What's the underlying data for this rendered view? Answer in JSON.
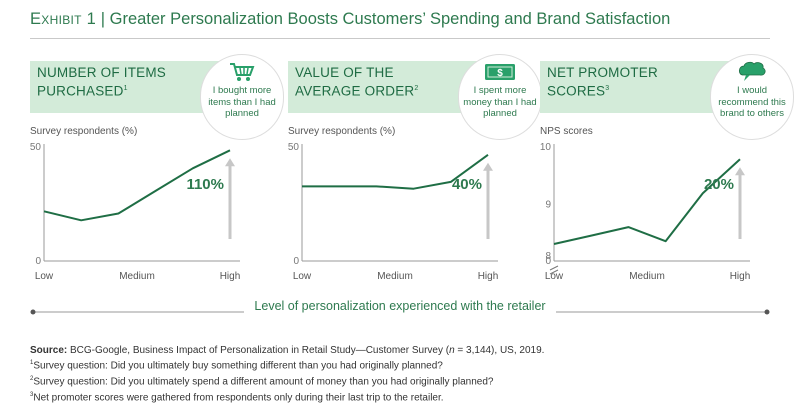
{
  "header": {
    "exhibit_label": "Exhibit 1",
    "separator": " | ",
    "title": "Greater Personalization Boosts Customers’ Spending and Brand Satisfaction"
  },
  "colors": {
    "accent": "#2e7a4f",
    "line": "#1f6e45",
    "banner_bg": "#d3ebd9",
    "axis": "#9a9a9a",
    "arrow": "#c7c7c7",
    "icon": "#29a06a"
  },
  "panels": [
    {
      "banner_title": "Number of items purchased",
      "footnote_mark": "1",
      "icon": "shopping-cart-icon",
      "bubble_text": "I bought more items than I had planned",
      "y_title": "Survey respondents (%)",
      "y_top_label": "50",
      "y_bottom_label": "0",
      "callout": "110%"
    },
    {
      "banner_title": "Value of the average order",
      "footnote_mark": "2",
      "icon": "dollar-bill-icon",
      "bubble_text": "I spent more money than I had planned",
      "y_title": "Survey respondents (%)",
      "y_top_label": "50",
      "y_bottom_label": "0",
      "callout": "40%"
    },
    {
      "banner_title": "Net promoter scores",
      "footnote_mark": "3",
      "icon": "speech-bubble-icon",
      "bubble_text": "I would recommend this brand to others",
      "y_title": "NPS scores",
      "y_top_label": "10",
      "y_mid_label": "9",
      "y_low_label": "8",
      "y_bottom_label": "0",
      "callout": "20%"
    }
  ],
  "x_axis_caption": "Level of personalization experienced with the retailer",
  "source": {
    "label": "Source:",
    "text_before_n": "BCG-Google, Business Impact of Personalization in Retail Study—Customer Survey (",
    "n_symbol": "n",
    "text_after_n": " = 3,144), US, 2019.",
    "notes": [
      {
        "mark": "1",
        "text": "Survey question: Did you ultimately buy something different than you had originally planned?"
      },
      {
        "mark": "2",
        "text": "Survey question: Did you ultimately spend a different amount of money than you had originally planned?"
      },
      {
        "mark": "3",
        "text": "Net promoter scores were gathered from respondents only during their last trip to the retailer."
      }
    ]
  },
  "chart_data": [
    {
      "type": "line",
      "title": "Number of items purchased",
      "ylabel": "Survey respondents (%)",
      "ylim": [
        0,
        50
      ],
      "x_tick_labels": [
        "Low",
        "Medium",
        "High"
      ],
      "x": [
        0,
        1,
        2,
        3,
        4,
        5
      ],
      "values": [
        22,
        18,
        21,
        31,
        41,
        49
      ],
      "annotation": "110%"
    },
    {
      "type": "line",
      "title": "Value of the average order",
      "ylabel": "Survey respondents (%)",
      "ylim": [
        0,
        50
      ],
      "x_tick_labels": [
        "Low",
        "Medium",
        "High"
      ],
      "x": [
        0,
        1,
        2,
        3,
        4,
        5
      ],
      "values": [
        33,
        33,
        33,
        32,
        35,
        47
      ],
      "annotation": "40%"
    },
    {
      "type": "line",
      "title": "Net promoter scores",
      "ylabel": "NPS scores",
      "ylim": [
        8,
        10
      ],
      "axis_break": true,
      "y_tick_labels": [
        "0",
        "8",
        "9",
        "10"
      ],
      "x_tick_labels": [
        "Low",
        "Medium",
        "High"
      ],
      "x": [
        0,
        1,
        2,
        3,
        4,
        5
      ],
      "values": [
        8.3,
        8.45,
        8.6,
        8.35,
        9.2,
        9.8
      ],
      "annotation": "20%"
    }
  ]
}
